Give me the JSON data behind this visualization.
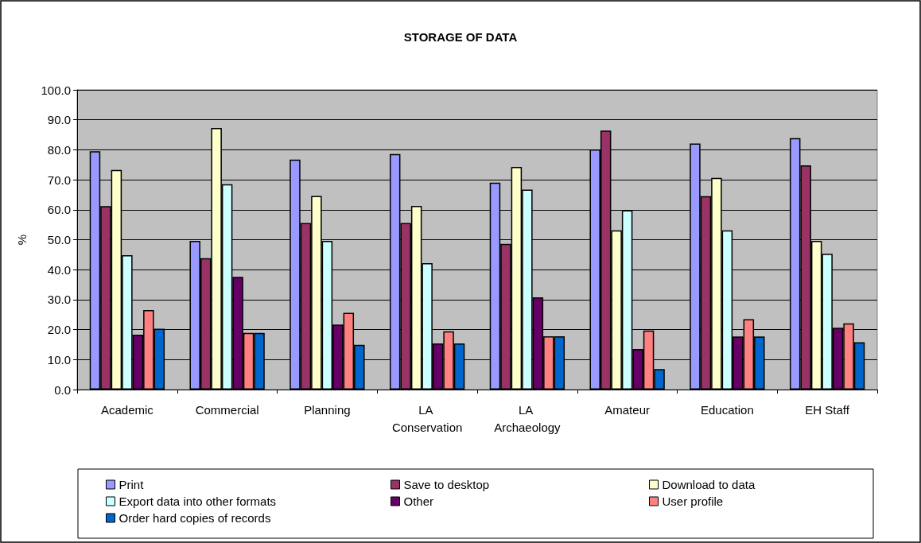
{
  "chart_data": {
    "type": "bar",
    "title": "STORAGE OF DATA",
    "ylabel": "%",
    "categories": [
      "Academic",
      "Commercial",
      "Planning",
      "LA Conservation",
      "LA Archaeology",
      "Amateur",
      "Education",
      "EH Staff"
    ],
    "series": [
      {
        "name": "Print",
        "color": "#9999ff",
        "values": [
          79.5,
          49.6,
          76.7,
          78.6,
          69.0,
          80.1,
          82.1,
          83.9
        ]
      },
      {
        "name": "Save to desktop",
        "color": "#993366",
        "values": [
          61.2,
          43.8,
          55.6,
          55.6,
          48.6,
          86.4,
          64.5,
          74.8
        ]
      },
      {
        "name": "Download to data",
        "color": "#ffffcc",
        "values": [
          73.3,
          87.3,
          64.6,
          61.3,
          74.3,
          53.1,
          70.6,
          49.6
        ]
      },
      {
        "name": "Export data into other formats",
        "color": "#ccffff",
        "values": [
          44.8,
          68.5,
          49.6,
          42.2,
          66.7,
          59.8,
          53.1,
          45.3
        ]
      },
      {
        "name": "Other",
        "color": "#660066",
        "values": [
          18.3,
          37.6,
          21.7,
          15.4,
          30.8,
          13.5,
          17.7,
          20.6
        ]
      },
      {
        "name": "User profile",
        "color": "#ff8080",
        "values": [
          26.5,
          18.9,
          25.6,
          19.4,
          17.8,
          19.7,
          23.5,
          22.1
        ]
      },
      {
        "name": "Order hard copies of records",
        "color": "#0066cc",
        "values": [
          20.3,
          18.9,
          14.9,
          15.4,
          17.8,
          6.8,
          17.7,
          15.8
        ]
      }
    ],
    "ylim": [
      0,
      100
    ],
    "yticks": [
      {
        "value": 0,
        "label": "0.0"
      },
      {
        "value": 10,
        "label": "10.0"
      },
      {
        "value": 20,
        "label": "20.0"
      },
      {
        "value": 30,
        "label": "30.0"
      },
      {
        "value": 40,
        "label": "40.0"
      },
      {
        "value": 50,
        "label": "50.0"
      },
      {
        "value": 60,
        "label": "60.0"
      },
      {
        "value": 70,
        "label": "70.0"
      },
      {
        "value": 80,
        "label": "80.0"
      },
      {
        "value": 90,
        "label": "90.0"
      },
      {
        "value": 100,
        "label": "100.0"
      }
    ],
    "grid": "y",
    "legend": "bottom"
  }
}
